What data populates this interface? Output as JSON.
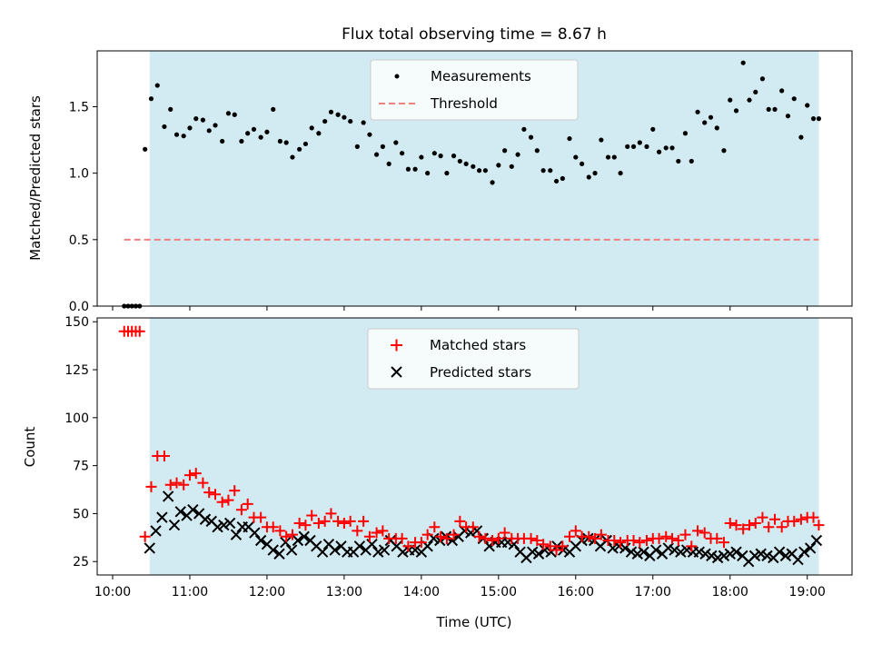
{
  "title": "Flux total observing time = 8.67 h",
  "colors": {
    "shade": "#add8e6",
    "measurement": "#000000",
    "threshold": "#f08080",
    "matched": "#ff0000",
    "predicted": "#000000"
  },
  "chart_data": [
    {
      "type": "scatter",
      "ylabel": "Matched/Predicted stars",
      "xlabel": "",
      "xlim": [
        9.8,
        19.58
      ],
      "ylim": [
        0,
        1.92
      ],
      "yticks": [
        0.0,
        0.5,
        1.0,
        1.5
      ],
      "ytick_labels": [
        "0.0",
        "0.5",
        "1.0",
        "1.5"
      ],
      "grid": false,
      "legend_position": "top-center",
      "shaded_span": [
        10.48,
        19.15
      ],
      "threshold": {
        "name": "Threshold",
        "y": 0.5,
        "x": [
          10.15,
          19.15
        ]
      },
      "series": [
        {
          "name": "Measurements",
          "x": [
            10.15,
            10.2,
            10.25,
            10.3,
            10.35,
            10.42,
            10.5,
            10.58,
            10.67,
            10.75,
            10.83,
            10.92,
            11.0,
            11.08,
            11.17,
            11.25,
            11.33,
            11.42,
            11.5,
            11.58,
            11.67,
            11.75,
            11.83,
            11.92,
            12.0,
            12.08,
            12.17,
            12.25,
            12.33,
            12.42,
            12.5,
            12.58,
            12.67,
            12.75,
            12.83,
            12.92,
            13.0,
            13.08,
            13.17,
            13.25,
            13.33,
            13.42,
            13.5,
            13.58,
            13.67,
            13.75,
            13.83,
            13.92,
            14.0,
            14.08,
            14.17,
            14.25,
            14.33,
            14.42,
            14.5,
            14.58,
            14.67,
            14.75,
            14.83,
            14.92,
            15.0,
            15.08,
            15.17,
            15.25,
            15.33,
            15.42,
            15.5,
            15.58,
            15.67,
            15.75,
            15.83,
            15.92,
            16.0,
            16.08,
            16.17,
            16.25,
            16.33,
            16.42,
            16.5,
            16.58,
            16.67,
            16.75,
            16.83,
            16.92,
            17.0,
            17.08,
            17.17,
            17.25,
            17.33,
            17.42,
            17.5,
            17.58,
            17.67,
            17.75,
            17.83,
            17.92,
            18.0,
            18.08,
            18.17,
            18.25,
            18.33,
            18.42,
            18.5,
            18.58,
            18.67,
            18.75,
            18.83,
            18.92,
            19.0,
            19.08,
            19.15
          ],
          "y": [
            0,
            0,
            0,
            0,
            0,
            1.18,
            1.56,
            1.66,
            1.35,
            1.48,
            1.29,
            1.28,
            1.34,
            1.41,
            1.4,
            1.32,
            1.36,
            1.24,
            1.45,
            1.44,
            1.24,
            1.3,
            1.33,
            1.27,
            1.31,
            1.48,
            1.24,
            1.23,
            1.12,
            1.18,
            1.22,
            1.34,
            1.3,
            1.39,
            1.46,
            1.44,
            1.42,
            1.39,
            1.2,
            1.38,
            1.29,
            1.14,
            1.2,
            1.07,
            1.23,
            1.15,
            1.03,
            1.03,
            1.12,
            1.0,
            1.15,
            1.13,
            1.0,
            1.13,
            1.09,
            1.07,
            1.05,
            1.02,
            1.02,
            0.93,
            1.06,
            1.17,
            1.05,
            1.14,
            1.33,
            1.27,
            1.17,
            1.02,
            1.02,
            0.94,
            0.96,
            1.26,
            1.12,
            1.07,
            0.97,
            1.0,
            1.25,
            1.12,
            1.12,
            1.0,
            1.2,
            1.2,
            1.23,
            1.2,
            1.33,
            1.16,
            1.19,
            1.19,
            1.09,
            1.3,
            1.09,
            1.46,
            1.38,
            1.42,
            1.34,
            1.17,
            1.55,
            1.47,
            1.83,
            1.55,
            1.61,
            1.71,
            1.48,
            1.48,
            1.62,
            1.43,
            1.56,
            1.27,
            1.51,
            1.41,
            1.41
          ]
        }
      ]
    },
    {
      "type": "scatter",
      "ylabel": "Count",
      "xlabel": "Time (UTC)",
      "xlim": [
        9.8,
        19.58
      ],
      "ylim": [
        18,
        152
      ],
      "yticks": [
        25,
        50,
        75,
        100,
        125,
        150
      ],
      "ytick_labels": [
        "25",
        "50",
        "75",
        "100",
        "125",
        "150"
      ],
      "xticks": [
        10,
        11,
        12,
        13,
        14,
        15,
        16,
        17,
        18,
        19
      ],
      "xtick_labels": [
        "10:00",
        "11:00",
        "12:00",
        "13:00",
        "14:00",
        "15:00",
        "16:00",
        "17:00",
        "18:00",
        "19:00"
      ],
      "grid": false,
      "legend_position": "top-center",
      "shaded_span": [
        10.48,
        19.15
      ],
      "series": [
        {
          "name": "Matched stars",
          "x": [
            10.15,
            10.2,
            10.25,
            10.3,
            10.35,
            10.42,
            10.5,
            10.58,
            10.67,
            10.75,
            10.83,
            10.92,
            11.0,
            11.08,
            11.17,
            11.25,
            11.33,
            11.42,
            11.5,
            11.58,
            11.67,
            11.75,
            11.83,
            11.92,
            12.0,
            12.08,
            12.17,
            12.25,
            12.33,
            12.42,
            12.5,
            12.58,
            12.67,
            12.75,
            12.83,
            12.92,
            13.0,
            13.08,
            13.17,
            13.25,
            13.33,
            13.42,
            13.5,
            13.58,
            13.67,
            13.75,
            13.83,
            13.92,
            14.0,
            14.08,
            14.17,
            14.25,
            14.33,
            14.42,
            14.5,
            14.58,
            14.67,
            14.75,
            14.83,
            14.92,
            15.0,
            15.08,
            15.17,
            15.25,
            15.33,
            15.42,
            15.5,
            15.58,
            15.67,
            15.75,
            15.83,
            15.92,
            16.0,
            16.08,
            16.17,
            16.25,
            16.33,
            16.42,
            16.5,
            16.58,
            16.67,
            16.75,
            16.83,
            16.92,
            17.0,
            17.08,
            17.17,
            17.25,
            17.33,
            17.42,
            17.5,
            17.58,
            17.67,
            17.75,
            17.83,
            17.92,
            18.0,
            18.08,
            18.17,
            18.25,
            18.33,
            18.42,
            18.5,
            18.58,
            18.67,
            18.75,
            18.83,
            18.92,
            19.0,
            19.08,
            19.15
          ],
          "y": [
            145,
            145,
            145,
            145,
            145,
            38,
            64,
            80,
            80,
            65,
            66,
            65,
            70,
            71,
            66,
            61,
            60,
            56,
            57,
            62,
            52,
            55,
            48,
            48,
            43,
            43,
            41,
            38,
            39,
            45,
            44,
            49,
            45,
            46,
            50,
            46,
            45,
            46,
            41,
            46,
            38,
            40,
            41,
            37,
            37,
            37,
            33,
            35,
            35,
            39,
            43,
            38,
            37,
            39,
            46,
            43,
            43,
            38,
            37,
            36,
            37,
            40,
            37,
            37,
            37,
            37,
            36,
            34,
            33,
            31,
            33,
            38,
            41,
            38,
            38,
            37,
            39,
            36,
            36,
            35,
            36,
            36,
            35,
            36,
            37,
            37,
            38,
            37,
            36,
            39,
            33,
            41,
            40,
            37,
            37,
            35,
            45,
            44,
            42,
            44,
            45,
            48,
            43,
            47,
            43,
            46,
            46,
            47,
            48,
            48,
            44
          ]
        },
        {
          "name": "Predicted stars",
          "x": [
            10.48,
            10.56,
            10.64,
            10.72,
            10.8,
            10.88,
            10.96,
            11.04,
            11.12,
            11.2,
            11.28,
            11.36,
            11.44,
            11.52,
            11.6,
            11.68,
            11.76,
            11.84,
            11.92,
            12.0,
            12.08,
            12.16,
            12.24,
            12.32,
            12.4,
            12.48,
            12.56,
            12.64,
            12.72,
            12.8,
            12.88,
            12.96,
            13.04,
            13.12,
            13.2,
            13.28,
            13.36,
            13.44,
            13.52,
            13.6,
            13.68,
            13.76,
            13.84,
            13.92,
            14.0,
            14.08,
            14.16,
            14.24,
            14.32,
            14.4,
            14.48,
            14.56,
            14.64,
            14.72,
            14.8,
            14.88,
            14.96,
            15.04,
            15.12,
            15.2,
            15.28,
            15.36,
            15.44,
            15.52,
            15.6,
            15.68,
            15.76,
            15.84,
            15.92,
            16.0,
            16.08,
            16.16,
            16.24,
            16.32,
            16.4,
            16.48,
            16.56,
            16.64,
            16.72,
            16.8,
            16.88,
            16.96,
            17.04,
            17.12,
            17.2,
            17.28,
            17.36,
            17.44,
            17.52,
            17.6,
            17.68,
            17.76,
            17.84,
            17.92,
            18.0,
            18.08,
            18.16,
            18.24,
            18.32,
            18.4,
            18.48,
            18.56,
            18.64,
            18.72,
            18.8,
            18.88,
            18.96,
            19.04,
            19.12
          ],
          "y": [
            32,
            41,
            48,
            59,
            44,
            51,
            49,
            52,
            50,
            47,
            46,
            43,
            44,
            45,
            39,
            43,
            43,
            40,
            36,
            34,
            31,
            29,
            35,
            31,
            36,
            38,
            36,
            33,
            30,
            34,
            31,
            33,
            30,
            30,
            33,
            31,
            34,
            30,
            31,
            36,
            33,
            30,
            31,
            31,
            30,
            33,
            37,
            36,
            38,
            36,
            38,
            41,
            40,
            41,
            37,
            33,
            35,
            35,
            35,
            34,
            30,
            27,
            30,
            29,
            31,
            30,
            33,
            31,
            30,
            33,
            36,
            37,
            36,
            33,
            36,
            32,
            33,
            32,
            30,
            29,
            30,
            28,
            31,
            29,
            32,
            31,
            30,
            31,
            30,
            30,
            29,
            28,
            27,
            28,
            29,
            30,
            28,
            25,
            28,
            29,
            28,
            27,
            30,
            28,
            29,
            26,
            30,
            32,
            36
          ]
        }
      ]
    }
  ]
}
